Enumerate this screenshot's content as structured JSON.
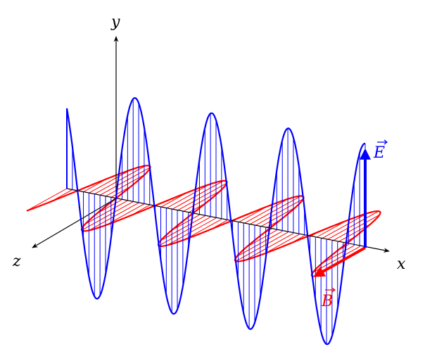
{
  "diagram": {
    "axes": {
      "x_label": "x",
      "y_label": "y",
      "z_label": "z"
    },
    "vectors": {
      "e_label": "E",
      "b_label": "B"
    },
    "colors": {
      "electric": "#0000ff",
      "magnetic": "#ff0000",
      "axis": "#000000"
    }
  }
}
